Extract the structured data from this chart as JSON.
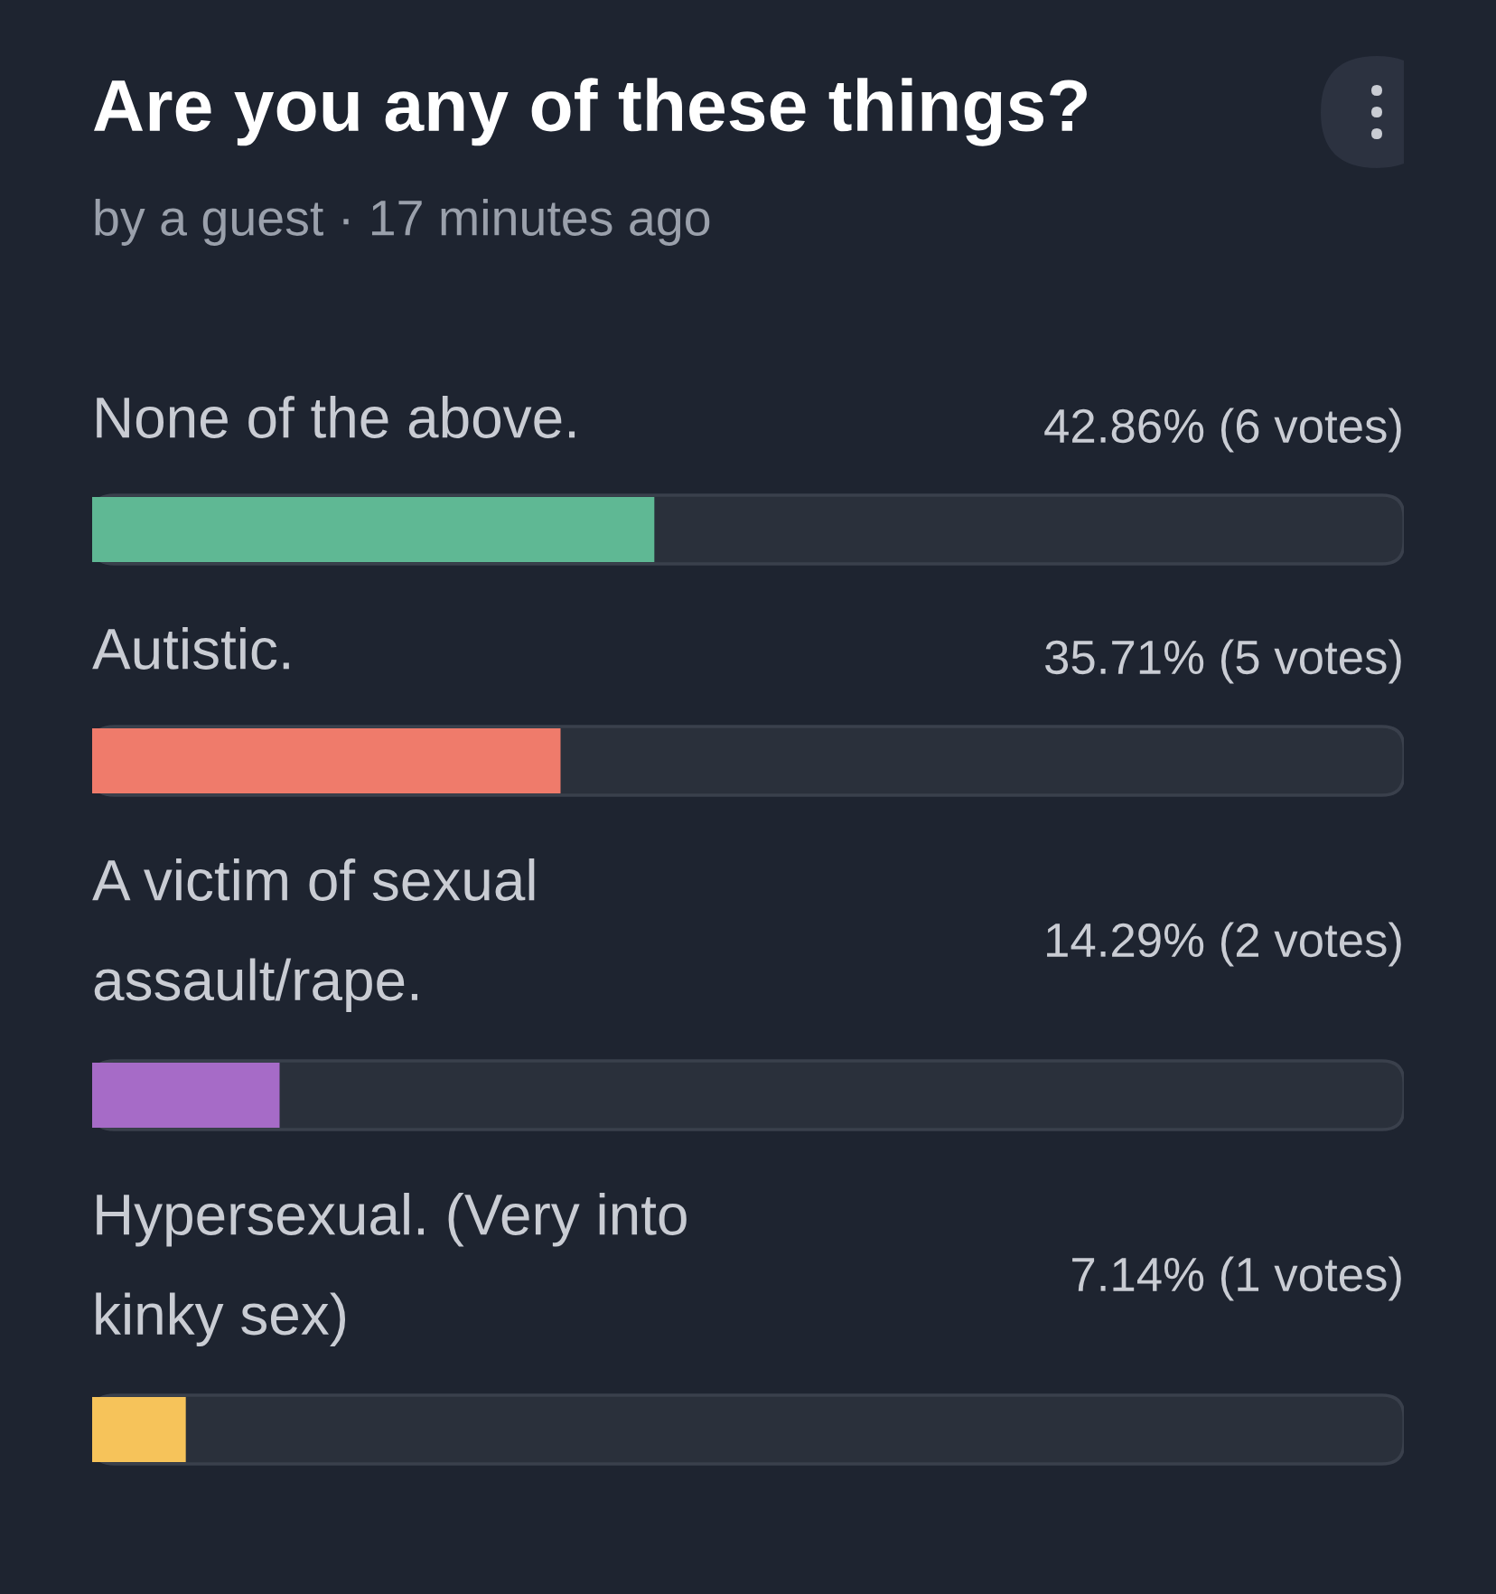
{
  "chart_data": {
    "type": "bar",
    "orientation": "horizontal",
    "title": "Are you any of these things?",
    "subtitle": "by a guest · 17 minutes ago",
    "categories": [
      "None of the above.",
      "Autistic.",
      "A victim of sexual\nassault/rape.",
      "Hypersexual. (Very into\nkinky sex)"
    ],
    "values": [
      42.86,
      35.71,
      14.29,
      7.14
    ],
    "colors": [
      "#5fb894",
      "#ef7b6b",
      "#a66bc7",
      "#f6c35a"
    ],
    "value_labels": [
      "42.86% (6 votes)",
      "35.71% (5 votes)",
      "14.29% (2 votes)",
      "7.14% (1 votes)"
    ],
    "xlim": [
      0,
      100
    ]
  }
}
